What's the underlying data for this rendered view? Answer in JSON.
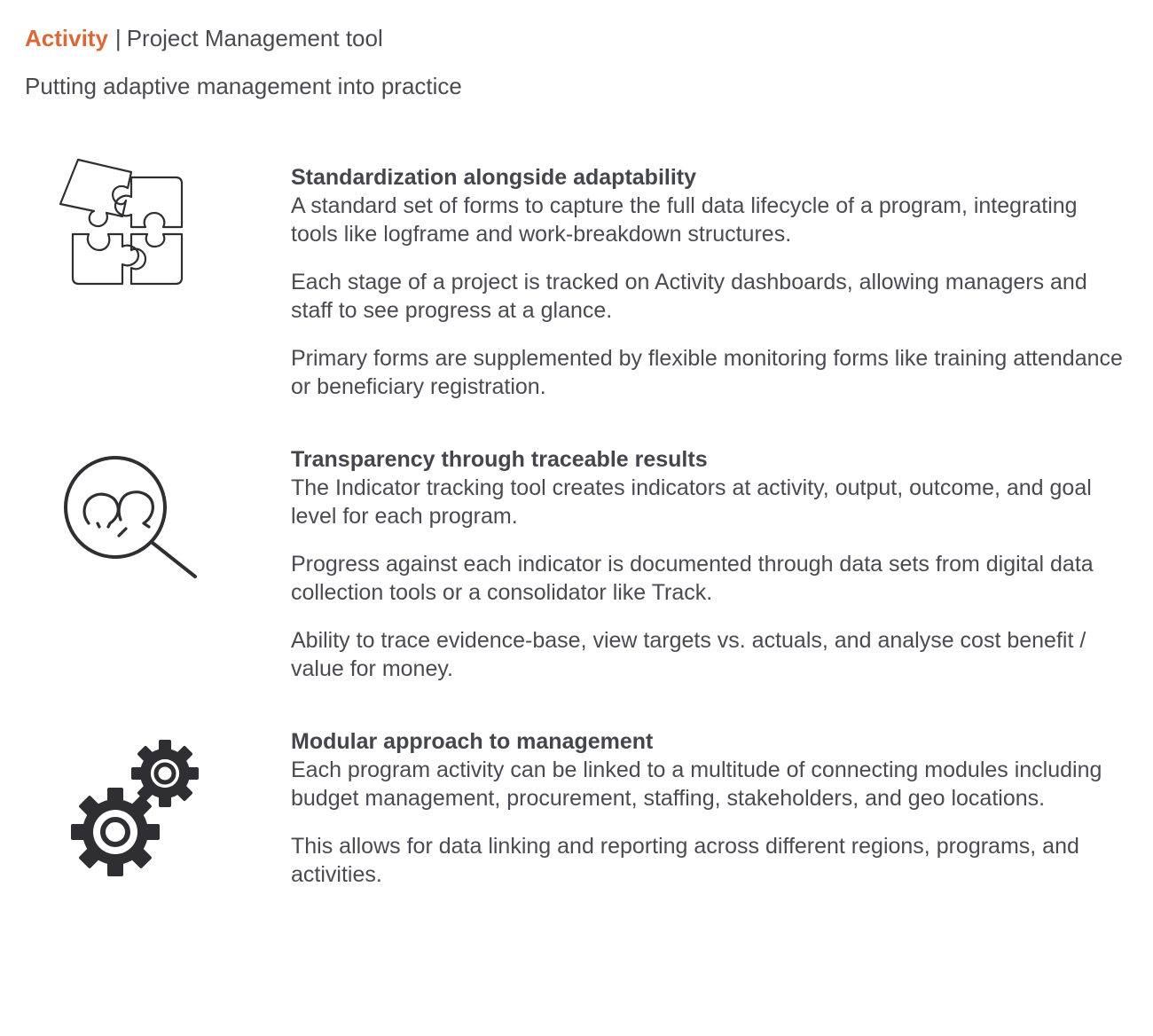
{
  "header": {
    "brand": "Activity",
    "separator": "|",
    "product": "Project Management tool"
  },
  "subtitle": "Putting adaptive management into practice",
  "sections": [
    {
      "icon": "puzzle-icon",
      "title": "Standardization alongside adaptability",
      "paragraphs": [
        "A standard set of forms to capture the full data lifecycle of a program, integrating tools like logframe and work-breakdown structures.",
        "Each stage of a project is tracked on Activity dashboards, allowing managers and staff to see progress at a glance.",
        "Primary forms are supplemented by flexible monitoring forms like training attendance or beneficiary registration."
      ]
    },
    {
      "icon": "magnifier-people-icon",
      "title": "Transparency through traceable results",
      "paragraphs": [
        "The Indicator tracking tool creates indicators at activity, output, outcome, and goal level for each program.",
        "Progress against each indicator is documented through data sets from digital data collection tools or a consolidator like Track.",
        "Ability to trace evidence-base, view targets vs. actuals, and analyse cost benefit / value for money."
      ]
    },
    {
      "icon": "gears-icon",
      "title": "Modular approach to management",
      "paragraphs": [
        "Each program activity can be linked to a multitude of connecting modules including budget management, procurement, staffing, stakeholders, and geo locations.",
        "This allows for data linking and reporting across different regions, programs, and activities."
      ]
    }
  ],
  "colors": {
    "brand": "#d9693a",
    "text": "#4a4a52",
    "icon": "#2e2e33"
  }
}
